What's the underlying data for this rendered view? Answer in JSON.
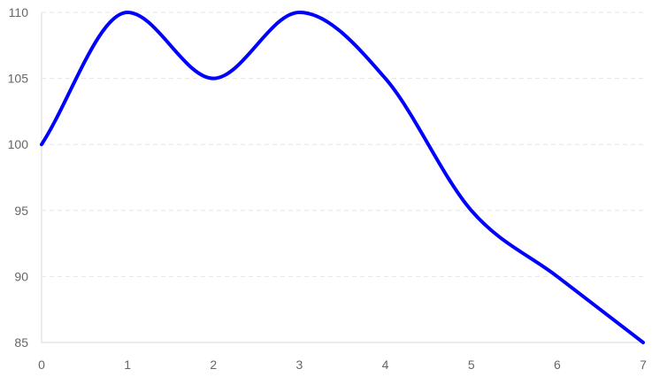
{
  "chart_data": {
    "type": "line",
    "x": [
      0,
      1,
      2,
      3,
      4,
      5,
      6,
      7
    ],
    "series": [
      {
        "values": [
          100,
          110,
          105,
          110,
          105,
          95,
          90,
          85
        ],
        "color": "#0000ff"
      }
    ],
    "xticks": [
      "0",
      "1",
      "2",
      "3",
      "4",
      "5",
      "6",
      "7"
    ],
    "yticks": [
      "85",
      "90",
      "95",
      "100",
      "105",
      "110"
    ],
    "xlim": [
      0,
      7
    ],
    "ylim": [
      85,
      110
    ],
    "grid": {
      "horizontal": true,
      "vertical": false,
      "style": "dashed",
      "color": "#e5e5e5"
    },
    "axis_color": "#d9d9d9",
    "tick_label_color": "#666666",
    "title": "",
    "xlabel": "",
    "ylabel": "",
    "legend": "none"
  }
}
